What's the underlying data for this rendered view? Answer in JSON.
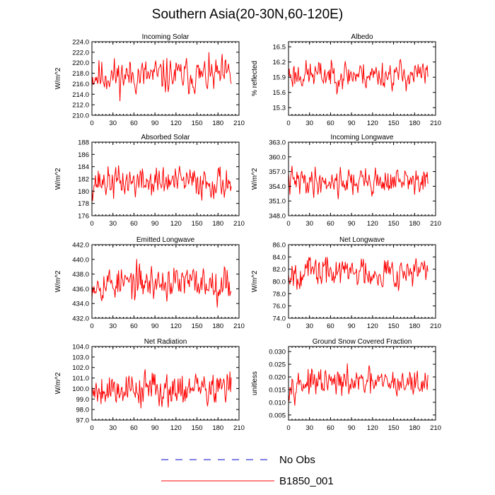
{
  "title": "Southern Asia(20-30N,60-120E)",
  "legend": {
    "items": [
      {
        "label": "No Obs",
        "color": "#0000cc",
        "style": "dashed"
      },
      {
        "label": "B1850_001",
        "color": "#ff0000",
        "style": "solid"
      }
    ]
  },
  "chart_data": [
    {
      "type": "line",
      "title": "Incoming Solar",
      "ylabel": "W/m^2",
      "xlabel": "",
      "xlim": [
        0,
        210
      ],
      "ylim": [
        210,
        224
      ],
      "xticks": [
        "0",
        "30",
        "60",
        "90",
        "120",
        "150",
        "180",
        "210"
      ],
      "yticks": [
        "210.0",
        "212.0",
        "214.0",
        "216.0",
        "218.0",
        "220.0",
        "222.0",
        "224.0"
      ],
      "series": [
        {
          "name": "B1850_001",
          "color": "#ff0000",
          "n": 200,
          "mean": 217.5,
          "amplitude": 2.6,
          "min": 210.8,
          "max": 223.3,
          "seed": 11
        }
      ]
    },
    {
      "type": "line",
      "title": "Albedo",
      "ylabel": "% reflected",
      "xlabel": "",
      "xlim": [
        0,
        210
      ],
      "ylim": [
        15.15,
        16.6
      ],
      "xticks": [
        "0",
        "30",
        "60",
        "90",
        "120",
        "150",
        "180",
        "210"
      ],
      "yticks": [
        "15.3",
        "15.6",
        "15.9",
        "16.2",
        "16.5"
      ],
      "series": [
        {
          "name": "B1850_001",
          "color": "#ff0000",
          "n": 200,
          "mean": 15.95,
          "amplitude": 0.22,
          "min": 15.38,
          "max": 16.42,
          "seed": 23
        }
      ]
    },
    {
      "type": "line",
      "title": "Absorbed Solar",
      "ylabel": "W/m^2",
      "xlabel": "",
      "xlim": [
        0,
        210
      ],
      "ylim": [
        176,
        188
      ],
      "xticks": [
        "0",
        "30",
        "60",
        "90",
        "120",
        "150",
        "180",
        "210"
      ],
      "yticks": [
        "176",
        "178",
        "180",
        "182",
        "184",
        "186",
        "188"
      ],
      "series": [
        {
          "name": "B1850_001",
          "color": "#ff0000",
          "n": 200,
          "mean": 181.5,
          "amplitude": 2.0,
          "min": 176.3,
          "max": 187.2,
          "seed": 37
        }
      ]
    },
    {
      "type": "line",
      "title": "Incoming Longwave",
      "ylabel": "W/m^2",
      "xlabel": "",
      "xlim": [
        0,
        210
      ],
      "ylim": [
        348,
        363
      ],
      "xticks": [
        "0",
        "30",
        "60",
        "90",
        "120",
        "150",
        "180",
        "210"
      ],
      "yticks": [
        "348.0",
        "351.0",
        "354.0",
        "357.0",
        "360.0",
        "363.0"
      ],
      "series": [
        {
          "name": "B1850_001",
          "color": "#ff0000",
          "n": 200,
          "mean": 355.0,
          "amplitude": 2.2,
          "min": 349.5,
          "max": 361.8,
          "seed": 41
        }
      ]
    },
    {
      "type": "line",
      "title": "Emitted Longwave",
      "ylabel": "W/m^2",
      "xlabel": "",
      "xlim": [
        0,
        210
      ],
      "ylim": [
        432,
        442
      ],
      "xticks": [
        "0",
        "30",
        "60",
        "90",
        "120",
        "150",
        "180",
        "210"
      ],
      "yticks": [
        "432.0",
        "434.0",
        "436.0",
        "438.0",
        "440.0",
        "442.0"
      ],
      "series": [
        {
          "name": "B1850_001",
          "color": "#ff0000",
          "n": 200,
          "mean": 436.8,
          "amplitude": 1.8,
          "min": 432.3,
          "max": 441.3,
          "seed": 53
        }
      ]
    },
    {
      "type": "line",
      "title": "Net Longwave",
      "ylabel": "W/m^2",
      "xlabel": "",
      "xlim": [
        0,
        210
      ],
      "ylim": [
        74,
        86
      ],
      "xticks": [
        "0",
        "30",
        "60",
        "90",
        "120",
        "150",
        "180",
        "210"
      ],
      "yticks": [
        "74.0",
        "76.0",
        "78.0",
        "80.0",
        "82.0",
        "84.0",
        "86.0"
      ],
      "series": [
        {
          "name": "B1850_001",
          "color": "#ff0000",
          "n": 200,
          "mean": 81.6,
          "amplitude": 2.0,
          "min": 75.2,
          "max": 85.8,
          "seed": 67
        }
      ]
    },
    {
      "type": "line",
      "title": "Net Radiation",
      "ylabel": "W/m^2",
      "xlabel": "",
      "xlim": [
        0,
        210
      ],
      "ylim": [
        97,
        104
      ],
      "xticks": [
        "0",
        "30",
        "60",
        "90",
        "120",
        "150",
        "180",
        "210"
      ],
      "yticks": [
        "97.0",
        "98.0",
        "99.0",
        "100.0",
        "101.0",
        "102.0",
        "103.0",
        "104.0"
      ],
      "series": [
        {
          "name": "B1850_001",
          "color": "#ff0000",
          "n": 200,
          "mean": 100.0,
          "amplitude": 1.3,
          "min": 97.3,
          "max": 103.2,
          "seed": 79
        }
      ]
    },
    {
      "type": "line",
      "title": "Ground Snow Covered Fraction",
      "ylabel": "unitless",
      "xlabel": "",
      "xlim": [
        0,
        210
      ],
      "ylim": [
        0.003,
        0.032
      ],
      "xticks": [
        "0",
        "30",
        "60",
        "90",
        "120",
        "150",
        "180",
        "210"
      ],
      "yticks": [
        "0.005",
        "0.010",
        "0.015",
        "0.020",
        "0.025",
        "0.030"
      ],
      "series": [
        {
          "name": "B1850_001",
          "color": "#ff0000",
          "n": 200,
          "mean": 0.0175,
          "amplitude": 0.0042,
          "min": 0.007,
          "max": 0.029,
          "seed": 97
        }
      ]
    }
  ]
}
